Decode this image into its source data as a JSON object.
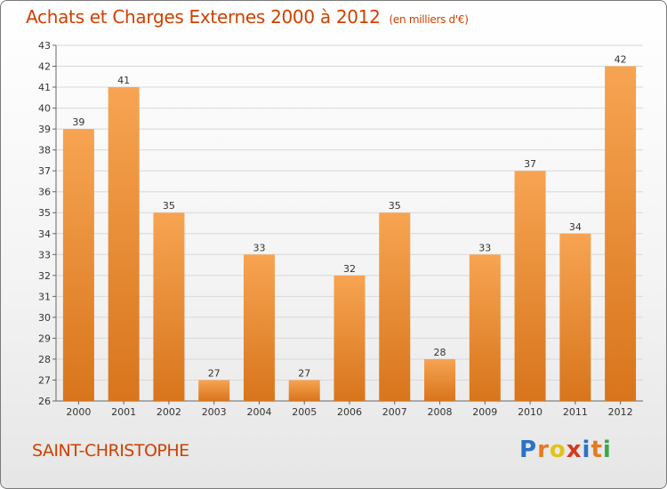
{
  "header": {
    "title": "Achats et Charges Externes 2000 à 2012",
    "unit": "(en milliers d'€)"
  },
  "location": "SAINT-CHRISTOPHE",
  "logo": {
    "text": "Proxiti",
    "letter_colors": [
      "#2a72c8",
      "#e67a1e",
      "#e2c21a",
      "#d23a1e",
      "#2a72c8",
      "#e67a1e",
      "#3aa84a"
    ]
  },
  "colors": {
    "title": "#d04000",
    "bar_light": "#f7a452",
    "bar_dark": "#d8751c",
    "grid": "#d8d8d8"
  },
  "chart_data": {
    "type": "bar",
    "title": "Achats et Charges Externes 2000 à 2012",
    "subtitle": "(en milliers d'€)",
    "categories": [
      "2000",
      "2001",
      "2002",
      "2003",
      "2004",
      "2005",
      "2006",
      "2007",
      "2008",
      "2009",
      "2010",
      "2011",
      "2012"
    ],
    "values": [
      39,
      41,
      35,
      27,
      33,
      27,
      32,
      35,
      28,
      33,
      37,
      34,
      42
    ],
    "ylim": [
      26,
      43
    ],
    "yticks": [
      26,
      27,
      28,
      29,
      30,
      31,
      32,
      33,
      34,
      35,
      36,
      37,
      38,
      39,
      40,
      41,
      42,
      43
    ],
    "grid": true,
    "data_labels": true,
    "legend": "none"
  }
}
